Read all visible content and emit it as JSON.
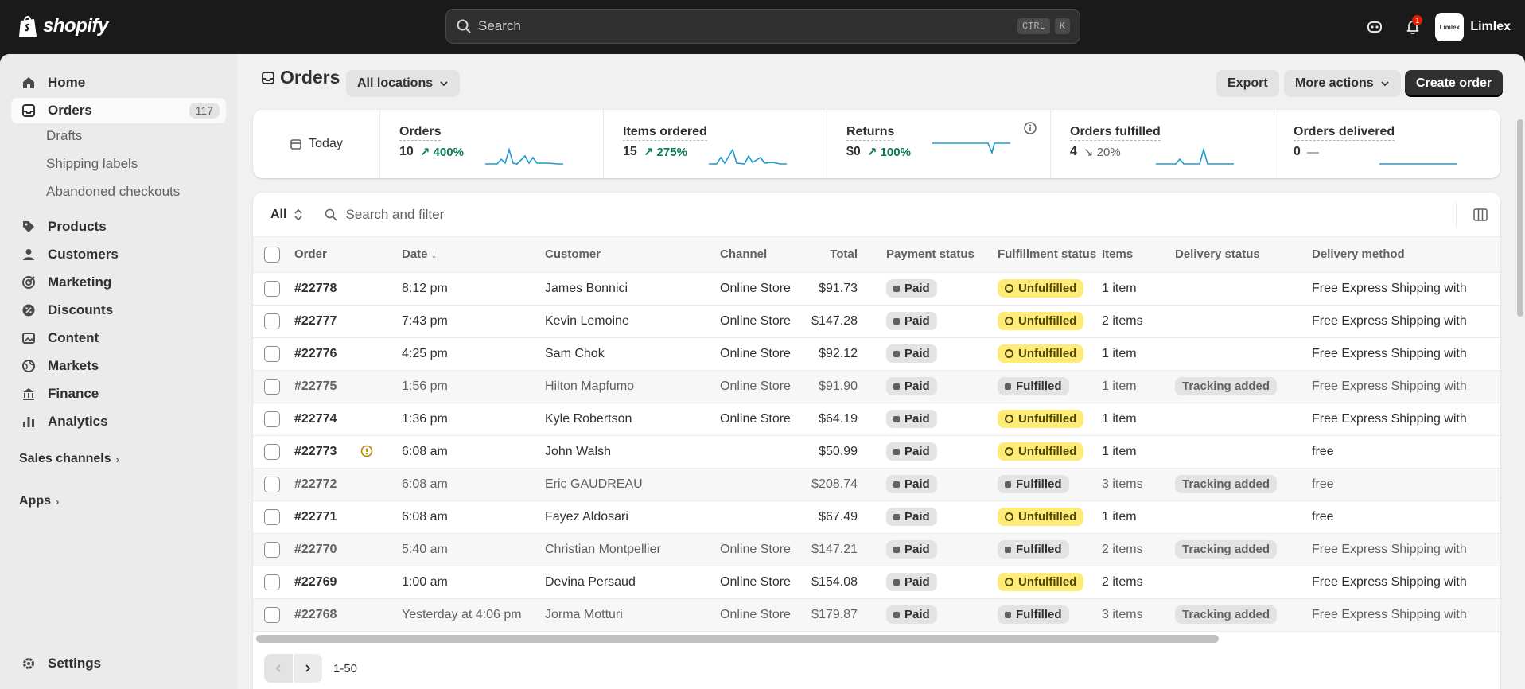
{
  "topbar": {
    "logo_text": "shopify",
    "search_placeholder": "Search",
    "kbd_ctrl": "CTRL",
    "kbd_k": "K",
    "notif_count": "1",
    "store_name": "Limlex",
    "store_avatar_text": "Limlex"
  },
  "sidebar": {
    "items": [
      {
        "label": "Home",
        "icon": "home-icon"
      },
      {
        "label": "Orders",
        "icon": "inbox-icon",
        "count": "117"
      },
      {
        "label": "Products",
        "icon": "tag-icon"
      },
      {
        "label": "Customers",
        "icon": "person-icon"
      },
      {
        "label": "Marketing",
        "icon": "target-icon"
      },
      {
        "label": "Discounts",
        "icon": "discount-icon"
      },
      {
        "label": "Content",
        "icon": "content-icon"
      },
      {
        "label": "Markets",
        "icon": "globe-icon"
      },
      {
        "label": "Finance",
        "icon": "bank-icon"
      },
      {
        "label": "Analytics",
        "icon": "bar-chart-icon"
      }
    ],
    "sub_items": [
      "Drafts",
      "Shipping labels",
      "Abandoned checkouts"
    ],
    "sales_channels": "Sales channels",
    "apps": "Apps",
    "settings": "Settings"
  },
  "header": {
    "title": "Orders",
    "location": "All locations",
    "export": "Export",
    "more_actions": "More actions",
    "create_order": "Create order"
  },
  "metrics": {
    "period": "Today",
    "cards": [
      {
        "label": "Orders",
        "value": "10",
        "change": "400%",
        "trend": "up"
      },
      {
        "label": "Items ordered",
        "value": "15",
        "change": "275%",
        "trend": "up"
      },
      {
        "label": "Returns",
        "value": "$0",
        "change": "100%",
        "trend": "up"
      },
      {
        "label": "Orders fulfilled",
        "value": "4",
        "change": "20%",
        "trend": "down"
      },
      {
        "label": "Orders delivered",
        "value": "0",
        "change": "—",
        "trend": "flat"
      }
    ]
  },
  "filter": {
    "view": "All",
    "search_placeholder": "Search and filter"
  },
  "table": {
    "columns": [
      "Order",
      "Date",
      "Customer",
      "Channel",
      "Total",
      "Payment status",
      "Fulfillment status",
      "Items",
      "Delivery status",
      "Delivery method"
    ],
    "sort_indicator": "↓",
    "rows": [
      {
        "order": "#22778",
        "date": "8:12 pm",
        "customer": "James Bonnici",
        "channel": "Online Store",
        "total": "$91.73",
        "payment": "Paid",
        "fulfillment": "Unfulfilled",
        "items": "1 item",
        "delivery_status": "",
        "delivery_method": "Free Express Shipping with"
      },
      {
        "order": "#22777",
        "date": "7:43 pm",
        "customer": "Kevin Lemoine",
        "channel": "Online Store",
        "total": "$147.28",
        "payment": "Paid",
        "fulfillment": "Unfulfilled",
        "items": "2 items",
        "delivery_status": "",
        "delivery_method": "Free Express Shipping with"
      },
      {
        "order": "#22776",
        "date": "4:25 pm",
        "customer": "Sam Chok",
        "channel": "Online Store",
        "total": "$92.12",
        "payment": "Paid",
        "fulfillment": "Unfulfilled",
        "items": "1 item",
        "delivery_status": "",
        "delivery_method": "Free Express Shipping with"
      },
      {
        "order": "#22775",
        "date": "1:56 pm",
        "customer": "Hilton Mapfumo",
        "channel": "Online Store",
        "total": "$91.90",
        "payment": "Paid",
        "fulfillment": "Fulfilled",
        "items": "1 item",
        "delivery_status": "Tracking added",
        "delivery_method": "Free Express Shipping with"
      },
      {
        "order": "#22774",
        "date": "1:36 pm",
        "customer": "Kyle Robertson",
        "channel": "Online Store",
        "total": "$64.19",
        "payment": "Paid",
        "fulfillment": "Unfulfilled",
        "items": "1 item",
        "delivery_status": "",
        "delivery_method": "Free Express Shipping with"
      },
      {
        "order": "#22773",
        "date": "6:08 am",
        "customer": "John Walsh",
        "channel": "",
        "total": "$50.99",
        "payment": "Paid",
        "fulfillment": "Unfulfilled",
        "items": "1 item",
        "delivery_status": "",
        "delivery_method": "free",
        "alert": true
      },
      {
        "order": "#22772",
        "date": "6:08 am",
        "customer": "Eric GAUDREAU",
        "channel": "",
        "total": "$208.74",
        "payment": "Paid",
        "fulfillment": "Fulfilled",
        "items": "3 items",
        "delivery_status": "Tracking added",
        "delivery_method": "free"
      },
      {
        "order": "#22771",
        "date": "6:08 am",
        "customer": "Fayez Aldosari",
        "channel": "",
        "total": "$67.49",
        "payment": "Paid",
        "fulfillment": "Unfulfilled",
        "items": "1 item",
        "delivery_status": "",
        "delivery_method": "free"
      },
      {
        "order": "#22770",
        "date": "5:40 am",
        "customer": "Christian Montpellier",
        "channel": "Online Store",
        "total": "$147.21",
        "payment": "Paid",
        "fulfillment": "Fulfilled",
        "items": "2 items",
        "delivery_status": "Tracking added",
        "delivery_method": "Free Express Shipping with"
      },
      {
        "order": "#22769",
        "date": "1:00 am",
        "customer": "Devina Persaud",
        "channel": "Online Store",
        "total": "$154.08",
        "payment": "Paid",
        "fulfillment": "Unfulfilled",
        "items": "2 items",
        "delivery_status": "",
        "delivery_method": "Free Express Shipping with"
      },
      {
        "order": "#22768",
        "date": "Yesterday at 4:06 pm",
        "customer": "Jorma Motturi",
        "channel": "Online Store",
        "total": "$179.87",
        "payment": "Paid",
        "fulfillment": "Fulfilled",
        "items": "3 items",
        "delivery_status": "Tracking added",
        "delivery_method": "Free Express Shipping with"
      }
    ]
  },
  "pagination": {
    "range": "1-50"
  },
  "colors": {
    "unfulfilled_badge": "#ffeb78",
    "accent_green": "#0c7b4f",
    "sparkline": "#1d9bd1",
    "topbar": "#1a1a1a"
  }
}
